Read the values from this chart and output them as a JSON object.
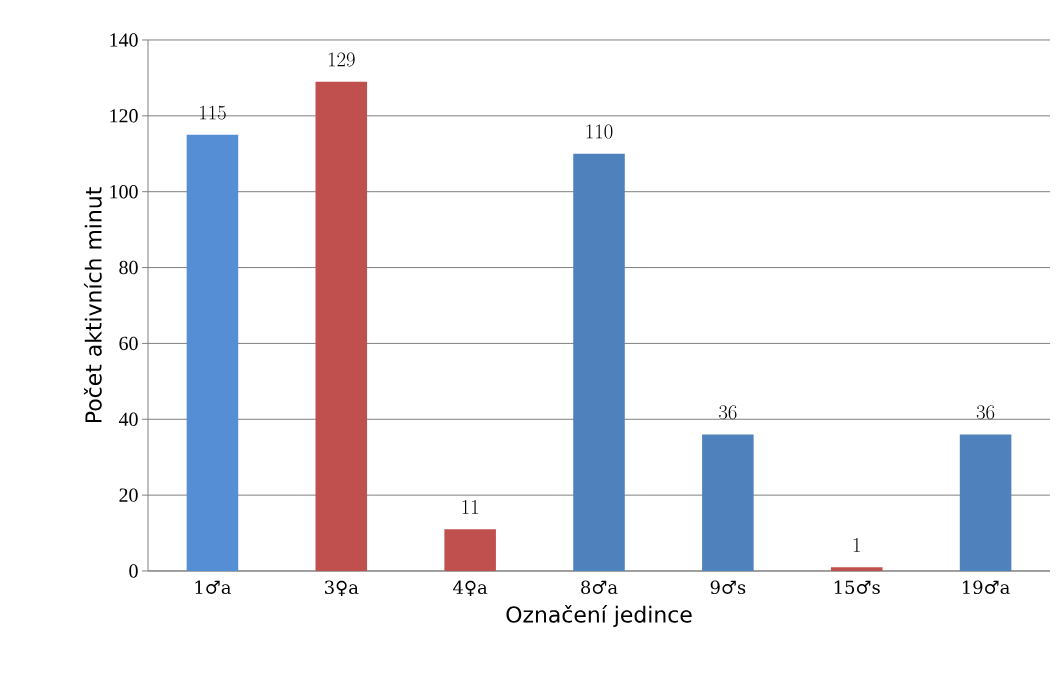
{
  "chart_data": {
    "type": "bar",
    "xlabel": "Označení jedince",
    "ylabel": "Počet aktivních minut",
    "categories": [
      "1♂a",
      "3♀a",
      "4♀a",
      "8♂a",
      "9♂s",
      "15♂s",
      "19♂a"
    ],
    "values": [
      115,
      129,
      11,
      110,
      36,
      1,
      36
    ],
    "colors": [
      "#558ed5",
      "#c0504d",
      "#c0504d",
      "#4f81bd",
      "#4f81bd",
      "#c0504d",
      "#4f81bd"
    ],
    "ylim": [
      0,
      140
    ],
    "yticks": [
      0,
      20,
      40,
      60,
      80,
      100,
      120,
      140
    ],
    "grid": "y",
    "data_labels": true
  }
}
